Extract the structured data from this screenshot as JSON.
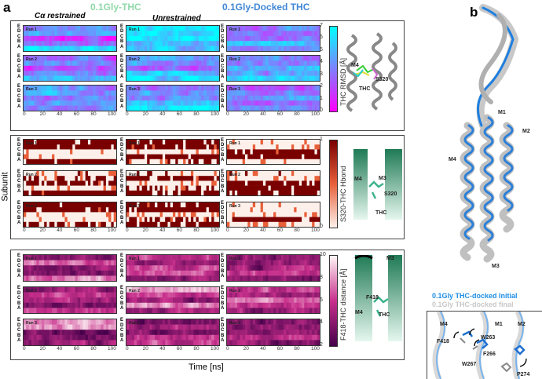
{
  "panel_labels": {
    "a": "a",
    "b": "b"
  },
  "headers": {
    "left": "0.1Gly-THC",
    "right": "0.1Gly-Docked THC",
    "left_color": "#8fd9a8",
    "right_color": "#3f86d6"
  },
  "column_titles": {
    "c1": "Cα restrained",
    "c2": "Unrestrained"
  },
  "ylabel": "Subunit",
  "xlabel": "Time [ns]",
  "subunits": [
    "E",
    "D",
    "C",
    "B",
    "A"
  ],
  "x_ticks": [
    "0",
    "20",
    "40",
    "60",
    "80",
    "100"
  ],
  "run_labels": [
    "Run 1",
    "Run 2",
    "Run 3"
  ],
  "structure_labels": {
    "rmsd": {
      "m4": "M4",
      "s320": "S320",
      "thc": "THC"
    },
    "hbond": {
      "m4": "M4",
      "m3": "M3",
      "s320": "S320",
      "thc": "THC"
    },
    "dist": {
      "m4": "M4",
      "m3": "M3",
      "f418": "F418",
      "thc": "THC"
    },
    "b_main": {
      "m1": "M1",
      "m2": "M2",
      "m3": "M3",
      "m4": "M4"
    },
    "b_inset": {
      "m4": "M4",
      "m1": "M1",
      "m2": "M2",
      "w263": "W263",
      "f418": "F418",
      "f266": "F266",
      "w267": "W267",
      "p274": "P274"
    }
  },
  "legend_b": {
    "initial": "0.1Gly THC-docked Initial",
    "final": "0.1Gly THC-docked final",
    "initial_color": "#1e8ee6",
    "final_color": "#c8c8c8"
  },
  "chart_data": [
    {
      "type": "heatmap",
      "title": "THC RMSD",
      "colorbar_label": "THC RMSD [Å]",
      "range": [
        0,
        7
      ],
      "cb_ticks": [
        "0",
        "1",
        "2",
        "3",
        "4",
        "5",
        "6",
        "7"
      ],
      "colors": [
        "#ff00ff",
        "#7f7fff",
        "#00ffff"
      ],
      "xlim": [
        0,
        100
      ],
      "runs": [
        [
          [
            3.5,
            4.5,
            1.5,
            3,
            5.5
          ],
          [
            3,
            4,
            1.5,
            3.5,
            5
          ],
          [
            4,
            4.5,
            3,
            4,
            4
          ]
        ],
        [
          [
            6,
            6,
            6.5,
            5,
            5.5
          ],
          [
            4,
            4,
            3,
            5.5,
            6
          ],
          [
            3.5,
            4,
            3.5,
            5.5,
            6
          ]
        ],
        [
          [
            3.5,
            3,
            3,
            5,
            3.5
          ],
          [
            3.5,
            3.5,
            5,
            4,
            6.5
          ],
          [
            2.5,
            3.5,
            4,
            3,
            3.5
          ]
        ]
      ]
    },
    {
      "type": "heatmap",
      "title": "S320-THC Hbond",
      "colorbar_label": "S320-THC Hbond",
      "range": [
        0,
        1
      ],
      "cb_ticks": [
        "0",
        "1"
      ],
      "colors": [
        "#fdf0ea",
        "#e8603a",
        "#7a0000"
      ],
      "xlim": [
        0,
        100
      ],
      "runs": [
        [
          [
            0.9,
            0.9,
            0,
            0,
            0.9
          ],
          [
            0.1,
            0.5,
            0.8,
            0,
            0.9
          ],
          [
            0.9,
            0.9,
            0,
            0,
            0.6
          ]
        ],
        [
          [
            0.8,
            0.8,
            0,
            0.9,
            0.4
          ],
          [
            0.1,
            0.9,
            0,
            0.4,
            0.7
          ],
          [
            0.9,
            0.9,
            0,
            0.6,
            0.8
          ]
        ],
        [
          [
            0,
            0,
            0.9,
            0.9,
            0
          ],
          [
            0.1,
            0,
            0.9,
            0.9,
            0.9
          ],
          [
            0,
            0,
            0,
            0.9,
            0
          ]
        ]
      ]
    },
    {
      "type": "heatmap",
      "title": "F418-THC distance",
      "colorbar_label": "F418-THC distance [Å]",
      "range": [
        2,
        10
      ],
      "cb_ticks": [
        "2",
        "4",
        "6",
        "8",
        "10"
      ],
      "colors": [
        "#45004a",
        "#c8308c",
        "#fff6f6"
      ],
      "xlim": [
        0,
        100
      ],
      "runs": [
        [
          [
            4,
            7,
            4,
            4,
            7.5
          ],
          [
            4,
            6,
            5,
            4,
            6
          ],
          [
            8,
            8,
            3.5,
            4,
            4.5
          ]
        ],
        [
          [
            6,
            5,
            6.5,
            6,
            4
          ],
          [
            8.5,
            6,
            4.5,
            7.5,
            5
          ],
          [
            4,
            5,
            4,
            6,
            6
          ]
        ],
        [
          [
            4.5,
            4.5,
            4.5,
            6.5,
            4
          ],
          [
            6,
            5,
            7.5,
            6,
            4.5
          ],
          [
            4,
            4,
            4,
            6,
            4
          ]
        ]
      ]
    }
  ]
}
